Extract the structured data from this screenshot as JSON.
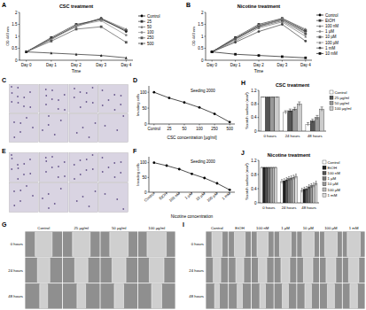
{
  "chart_data": [
    {
      "panel": "A",
      "type": "line",
      "title": "CSC treatment",
      "x_label": "Time",
      "y_label": "OD 440 nm",
      "categories": [
        "Day 0",
        "Day 1",
        "Day 2",
        "Day 3",
        "Day 4"
      ],
      "ylim": [
        0,
        2
      ],
      "yticks": [
        0,
        0.5,
        1,
        1.5,
        2
      ],
      "legend": "right",
      "series": [
        {
          "name": "Control",
          "color": "#000000",
          "marker": "circle",
          "values": [
            0.35,
            0.9,
            1.45,
            1.75,
            1.2
          ]
        },
        {
          "name": "25",
          "color": "#333333",
          "marker": "square",
          "values": [
            0.35,
            0.95,
            1.5,
            1.7,
            1.25
          ]
        },
        {
          "name": "50",
          "color": "#666666",
          "marker": "triangle",
          "values": [
            0.35,
            0.9,
            1.4,
            1.75,
            1.3
          ]
        },
        {
          "name": "100",
          "color": "#888888",
          "marker": "circle",
          "values": [
            0.35,
            0.85,
            1.45,
            1.65,
            1.05
          ]
        },
        {
          "name": "250",
          "color": "#555555",
          "marker": "square",
          "values": [
            0.35,
            0.8,
            1.3,
            1.4,
            0.75
          ]
        },
        {
          "name": "500",
          "color": "#222222",
          "marker": "triangle",
          "values": [
            0.35,
            0.3,
            0.25,
            0.2,
            0.1
          ]
        }
      ]
    },
    {
      "panel": "B",
      "type": "line",
      "title": "Nicotine treatment",
      "x_label": "Time",
      "y_label": "OD 440 nm",
      "categories": [
        "Day 0",
        "Day 1",
        "Day 2",
        "Day 3",
        "Day 4"
      ],
      "ylim": [
        0,
        2
      ],
      "yticks": [
        0,
        0.5,
        1,
        1.5,
        2
      ],
      "legend": "right",
      "series": [
        {
          "name": "Control",
          "color": "#000000",
          "marker": "circle",
          "values": [
            0.35,
            0.9,
            1.45,
            1.7,
            1.2
          ]
        },
        {
          "name": "EtOH",
          "color": "#333333",
          "marker": "square",
          "values": [
            0.35,
            0.95,
            1.5,
            1.75,
            1.25
          ]
        },
        {
          "name": "100 nM",
          "color": "#666666",
          "marker": "triangle",
          "values": [
            0.35,
            0.9,
            1.4,
            1.75,
            1.3
          ]
        },
        {
          "name": "1 µM",
          "color": "#888888",
          "marker": "circle",
          "values": [
            0.35,
            0.85,
            1.45,
            1.7,
            1.15
          ]
        },
        {
          "name": "10 µM",
          "color": "#555555",
          "marker": "square",
          "values": [
            0.35,
            0.9,
            1.4,
            1.65,
            1.1
          ]
        },
        {
          "name": "100 µM",
          "color": "#777777",
          "marker": "triangle",
          "values": [
            0.35,
            0.8,
            1.35,
            1.6,
            1.0
          ]
        },
        {
          "name": "1 mM",
          "color": "#444444",
          "marker": "circle",
          "values": [
            0.35,
            0.75,
            1.2,
            1.5,
            0.8
          ]
        },
        {
          "name": "10 mM",
          "color": "#111111",
          "marker": "square",
          "values": [
            0.35,
            0.25,
            0.2,
            0.15,
            0.1
          ]
        }
      ]
    },
    {
      "panel": "D",
      "type": "line",
      "x_label": "CSC concentration [µg/ml]",
      "y_label": "Invading cells",
      "annotation": "Seeding 2000",
      "categories": [
        "Control",
        "25",
        "50",
        "100",
        "250",
        "500"
      ],
      "values": [
        100,
        82,
        68,
        52,
        32,
        6
      ],
      "color": "#000000",
      "marker": "circle",
      "ylim": [
        0,
        120
      ],
      "yticks": [
        0,
        50,
        100
      ]
    },
    {
      "panel": "F",
      "type": "line",
      "x_label": "Nicotine concentration",
      "y_label": "Invading cells",
      "annotation": "Seeding 2000",
      "categories": [
        "Control",
        "EtOH",
        "100 nM",
        "1 µM",
        "10 µM",
        "100 µM",
        "1 mM"
      ],
      "values": [
        100,
        90,
        78,
        62,
        48,
        30,
        8
      ],
      "color": "#000000",
      "marker": "circle",
      "ylim": [
        0,
        120
      ],
      "yticks": [
        0,
        50,
        100
      ]
    },
    {
      "panel": "H",
      "type": "bar",
      "title": "CSC treatment",
      "y_label": "Scratch surface (mm²)",
      "categories": [
        "0 hours",
        "24 hours",
        "48 hours"
      ],
      "ylim": [
        0,
        1.2
      ],
      "yticks": [
        0,
        0.4,
        0.8,
        1.2
      ],
      "legend": "right",
      "series": [
        {
          "name": "Control",
          "color": "#ffffff",
          "values": [
            1,
            0.55,
            0.2
          ],
          "errors": [
            0,
            0.05,
            0.05
          ]
        },
        {
          "name": "25 µg/ml",
          "color": "#555555",
          "values": [
            1,
            0.6,
            0.3
          ],
          "errors": [
            0,
            0.05,
            0.05
          ]
        },
        {
          "name": "50 µg/ml",
          "color": "#999999",
          "values": [
            1,
            0.65,
            0.4
          ],
          "errors": [
            0,
            0.05,
            0.06
          ]
        },
        {
          "name": "100 µg/ml",
          "color": "#cccccc",
          "values": [
            1,
            0.8,
            0.65
          ],
          "errors": [
            0,
            0.06,
            0.06
          ]
        }
      ]
    },
    {
      "panel": "J",
      "type": "bar",
      "title": "Nicotine treatment",
      "y_label": "Scratch surface (mm²)",
      "categories": [
        "0 hours",
        "24 hours",
        "48 hours"
      ],
      "ylim": [
        0,
        1.2
      ],
      "yticks": [
        0,
        0.4,
        0.8,
        1.2
      ],
      "legend": "right",
      "series": [
        {
          "name": "Control",
          "color": "#ffffff",
          "values": [
            1,
            0.6,
            0.35
          ],
          "errors": [
            0,
            0.06,
            0.06
          ]
        },
        {
          "name": "EtOH",
          "color": "#222222",
          "values": [
            1,
            0.62,
            0.38
          ],
          "errors": [
            0,
            0.06,
            0.06
          ]
        },
        {
          "name": "100 nM",
          "color": "#555555",
          "values": [
            1,
            0.65,
            0.4
          ],
          "errors": [
            0,
            0.06,
            0.06
          ]
        },
        {
          "name": "1 µM",
          "color": "#777777",
          "values": [
            1,
            0.68,
            0.45
          ],
          "errors": [
            0,
            0.06,
            0.06
          ]
        },
        {
          "name": "10 µM",
          "color": "#999999",
          "values": [
            1,
            0.7,
            0.48
          ],
          "errors": [
            0,
            0.06,
            0.06
          ]
        },
        {
          "name": "100 µM",
          "color": "#bbbbbb",
          "values": [
            1,
            0.72,
            0.5
          ],
          "errors": [
            0,
            0.06,
            0.06
          ]
        },
        {
          "name": "1 mM",
          "color": "#dddddd",
          "values": [
            1,
            0.75,
            0.55
          ],
          "errors": [
            0,
            0.06,
            0.06
          ]
        }
      ]
    }
  ],
  "image_panels": [
    {
      "panel": "C"
    },
    {
      "panel": "E"
    },
    {
      "panel": "G",
      "columns": [
        "Control",
        "25 µg/ml",
        "50 µg/ml",
        "100 µg/ml"
      ],
      "rows": [
        "0 hours",
        "24 hours",
        "48 hours"
      ]
    },
    {
      "panel": "I",
      "columns": [
        "Control",
        "EtOH",
        "100 nM",
        "1 µM",
        "10 µM",
        "100 µM",
        "1 mM"
      ],
      "rows": [
        "0 hours",
        "24 hours",
        "48 hours"
      ]
    }
  ]
}
